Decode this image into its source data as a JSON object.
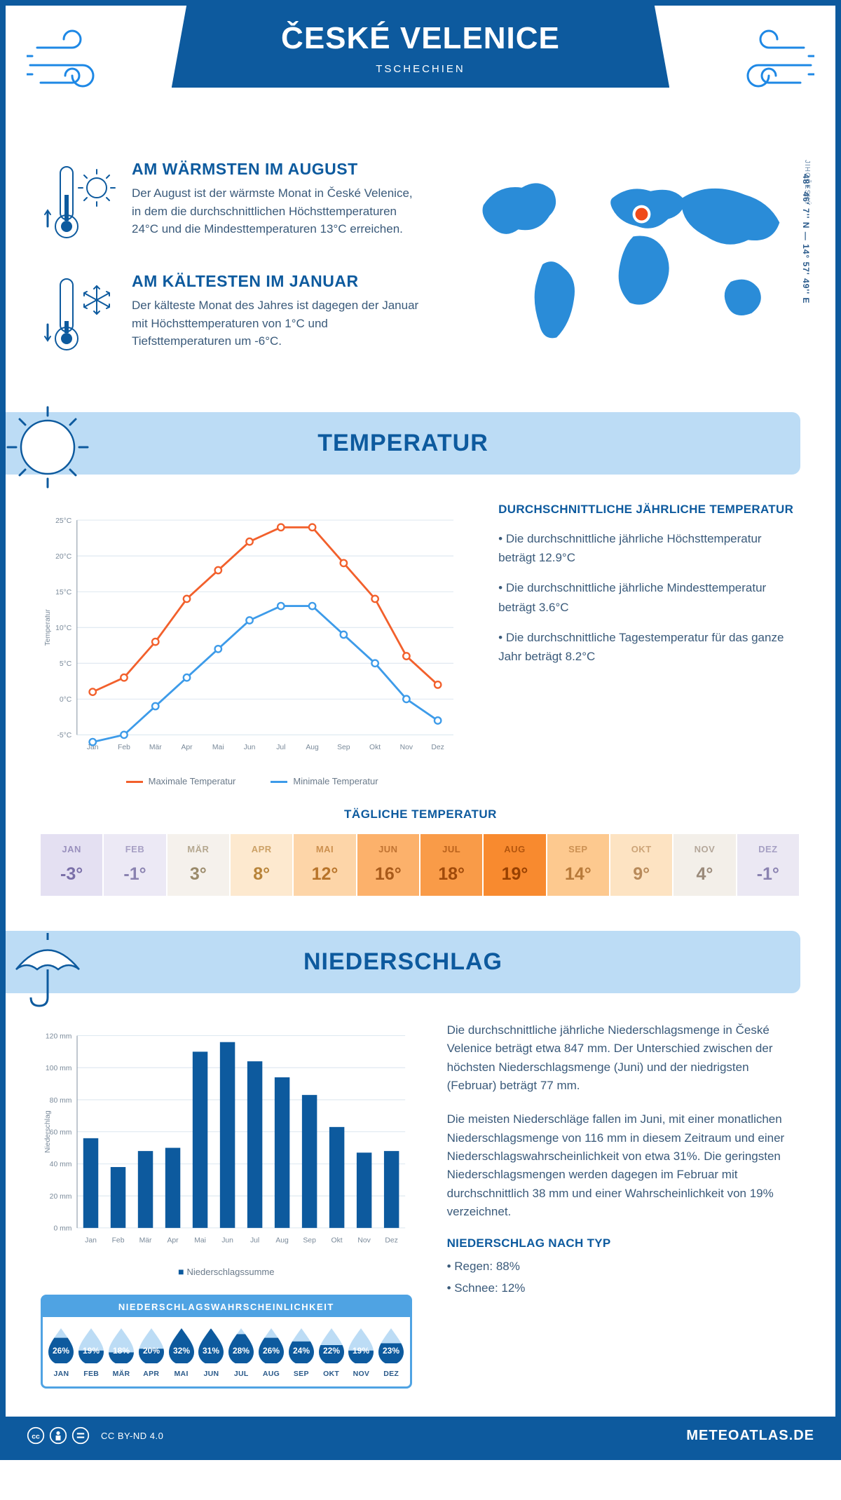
{
  "header": {
    "city": "ČESKÉ VELENICE",
    "country": "TSCHECHIEN",
    "coords": "48° 46' 7'' N — 14° 57' 49'' E",
    "region": "JIHOČESKÝ"
  },
  "facts": {
    "warm_title": "AM WÄRMSTEN IM AUGUST",
    "warm_text": "Der August ist der wärmste Monat in České Velenice, in dem die durchschnittlichen Höchsttemperaturen 24°C und die Mindesttemperaturen 13°C erreichen.",
    "cold_title": "AM KÄLTESTEN IM JANUAR",
    "cold_text": "Der kälteste Monat des Jahres ist dagegen der Januar mit Höchsttemperaturen von 1°C und Tiefsttemperaturen um -6°C."
  },
  "temperature_banner": "TEMPERATUR",
  "temp_chart": {
    "type": "line",
    "months": [
      "Jan",
      "Feb",
      "Mär",
      "Apr",
      "Mai",
      "Jun",
      "Jul",
      "Aug",
      "Sep",
      "Okt",
      "Nov",
      "Dez"
    ],
    "high": [
      1,
      3,
      8,
      14,
      18,
      22,
      24,
      24,
      19,
      14,
      6,
      2
    ],
    "low": [
      -6,
      -5,
      -1,
      3,
      7,
      11,
      13,
      13,
      9,
      5,
      0,
      -3
    ],
    "ylim": [
      -5,
      25
    ],
    "ytick_step": 5,
    "y_axis_label": "Temperatur",
    "colors": {
      "high": "#f2602c",
      "low": "#3d9be9",
      "grid": "#d8e4ee",
      "axis": "#7a8a9a"
    },
    "legend_high": "Maximale Temperatur",
    "legend_low": "Minimale Temperatur",
    "line_width": 3,
    "marker": "circle",
    "marker_size": 5
  },
  "avg_temp": {
    "title": "DURCHSCHNITTLICHE JÄHRLICHE TEMPERATUR",
    "b1": "• Die durchschnittliche jährliche Höchsttemperatur beträgt 12.9°C",
    "b2": "• Die durchschnittliche jährliche Mindesttemperatur beträgt 3.6°C",
    "b3": "• Die durchschnittliche Tagestemperatur für das ganze Jahr beträgt 8.2°C"
  },
  "daily": {
    "title": "TÄGLICHE TEMPERATUR",
    "months": [
      "JAN",
      "FEB",
      "MÄR",
      "APR",
      "MAI",
      "JUN",
      "JUL",
      "AUG",
      "SEP",
      "OKT",
      "NOV",
      "DEZ"
    ],
    "values": [
      "-3°",
      "-1°",
      "3°",
      "8°",
      "12°",
      "16°",
      "18°",
      "19°",
      "14°",
      "9°",
      "4°",
      "-1°"
    ],
    "bg_colors": [
      "#e4e0f2",
      "#ece9f5",
      "#f5f1ec",
      "#fde9cf",
      "#fdd5a8",
      "#fcb16b",
      "#f99b48",
      "#f88a2f",
      "#fdc98f",
      "#fde3c2",
      "#f3efe9",
      "#ebe8f3"
    ],
    "text_colors": [
      "#7a6fa8",
      "#8a82b0",
      "#9a8a6a",
      "#b8843a",
      "#b8742a",
      "#a85a1a",
      "#a04a0a",
      "#984000",
      "#b87a3a",
      "#b88a5a",
      "#9a8a7a",
      "#8a82b0"
    ]
  },
  "precip_banner": "NIEDERSCHLAG",
  "precip_chart": {
    "type": "bar",
    "months": [
      "Jan",
      "Feb",
      "Mär",
      "Apr",
      "Mai",
      "Jun",
      "Jul",
      "Aug",
      "Sep",
      "Okt",
      "Nov",
      "Dez"
    ],
    "values": [
      56,
      38,
      48,
      50,
      110,
      116,
      104,
      94,
      83,
      63,
      47,
      48
    ],
    "ylim": [
      0,
      120
    ],
    "ytick_step": 20,
    "y_axis_label": "Niederschlag",
    "bar_color": "#0d5a9e",
    "grid": "#d8e4ee",
    "unit": "mm",
    "bar_width": 0.55,
    "legend": "Niederschlagssumme"
  },
  "prob": {
    "title": "NIEDERSCHLAGSWAHRSCHEINLICHKEIT",
    "months": [
      "JAN",
      "FEB",
      "MÄR",
      "APR",
      "MAI",
      "JUN",
      "JUL",
      "AUG",
      "SEP",
      "OKT",
      "NOV",
      "DEZ"
    ],
    "pct": [
      26,
      19,
      18,
      20,
      32,
      31,
      28,
      26,
      24,
      22,
      19,
      23
    ],
    "fill_min": 18,
    "fill_max": 32,
    "drop_empty": "#bcdcf5",
    "drop_fill": "#0d5a9e",
    "text_color": "#ffffff"
  },
  "precip_text": {
    "p1": "Die durchschnittliche jährliche Niederschlagsmenge in České Velenice beträgt etwa 847 mm. Der Unterschied zwischen der höchsten Niederschlagsmenge (Juni) und der niedrigsten (Februar) beträgt 77 mm.",
    "p2": "Die meisten Niederschläge fallen im Juni, mit einer monatlichen Niederschlagsmenge von 116 mm in diesem Zeitraum und einer Niederschlagswahrscheinlichkeit von etwa 31%. Die geringsten Niederschlagsmengen werden dagegen im Februar mit durchschnittlich 38 mm und einer Wahrscheinlichkeit von 19% verzeichnet.",
    "type_title": "NIEDERSCHLAG NACH TYP",
    "rain": "• Regen: 88%",
    "snow": "• Schnee: 12%"
  },
  "footer": {
    "license": "CC BY-ND 4.0",
    "brand": "METEOATLAS.DE"
  },
  "palette": {
    "primary": "#0d5a9e",
    "banner_bg": "#bcdcf5",
    "accent": "#1e88e5",
    "map_fill": "#2a8cd8",
    "marker": "#f04a1a"
  }
}
